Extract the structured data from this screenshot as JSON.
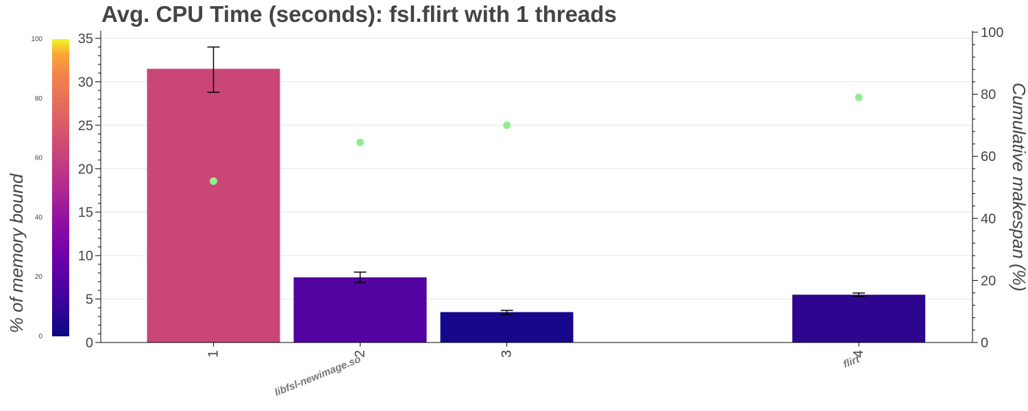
{
  "chart_data": {
    "type": "bar",
    "title": "Avg. CPU Time (seconds): fsl.flirt with 1 threads",
    "categories": [
      "1",
      "2",
      "3",
      "4"
    ],
    "x_positions": [
      1,
      2,
      3,
      5.4
    ],
    "values": [
      31.5,
      7.5,
      3.5,
      5.5
    ],
    "error_low": [
      28.8,
      6.9,
      3.2,
      5.3
    ],
    "error_high": [
      34.0,
      8.1,
      3.7,
      5.7
    ],
    "bar_memory_bound_pct": [
      55,
      20,
      5,
      12
    ],
    "bar_colors": [
      "#c94677",
      "#5303a1",
      "#17078b",
      "#2d068f"
    ],
    "ylabel": "",
    "ylim": [
      0,
      35.5
    ],
    "yticks": [
      0,
      5,
      10,
      15,
      20,
      25,
      30,
      35
    ],
    "secondary_axis": {
      "label": "Cumulative makespan (%)",
      "ylim": [
        0,
        100
      ],
      "yticks": [
        0,
        20,
        40,
        60,
        80,
        100
      ],
      "series": [
        {
          "x": 1,
          "value": 52,
          "color": "#90ee90"
        },
        {
          "x": 2,
          "value": 64.5,
          "color": "#90ee90"
        },
        {
          "x": 3,
          "value": 70,
          "color": "#90ee90"
        },
        {
          "x": 5.4,
          "value": 79,
          "color": "#90ee90"
        }
      ]
    },
    "colorbar": {
      "label": "% of memory bound",
      "range": [
        0,
        100
      ],
      "ticks": [
        0,
        20,
        40,
        60,
        80,
        100
      ],
      "colormap": "plasma"
    },
    "group_labels": [
      {
        "text": "libfsl-newimage.so",
        "x": 2
      },
      {
        "text": "flirt",
        "x": 5.4
      }
    ],
    "grid": true
  }
}
